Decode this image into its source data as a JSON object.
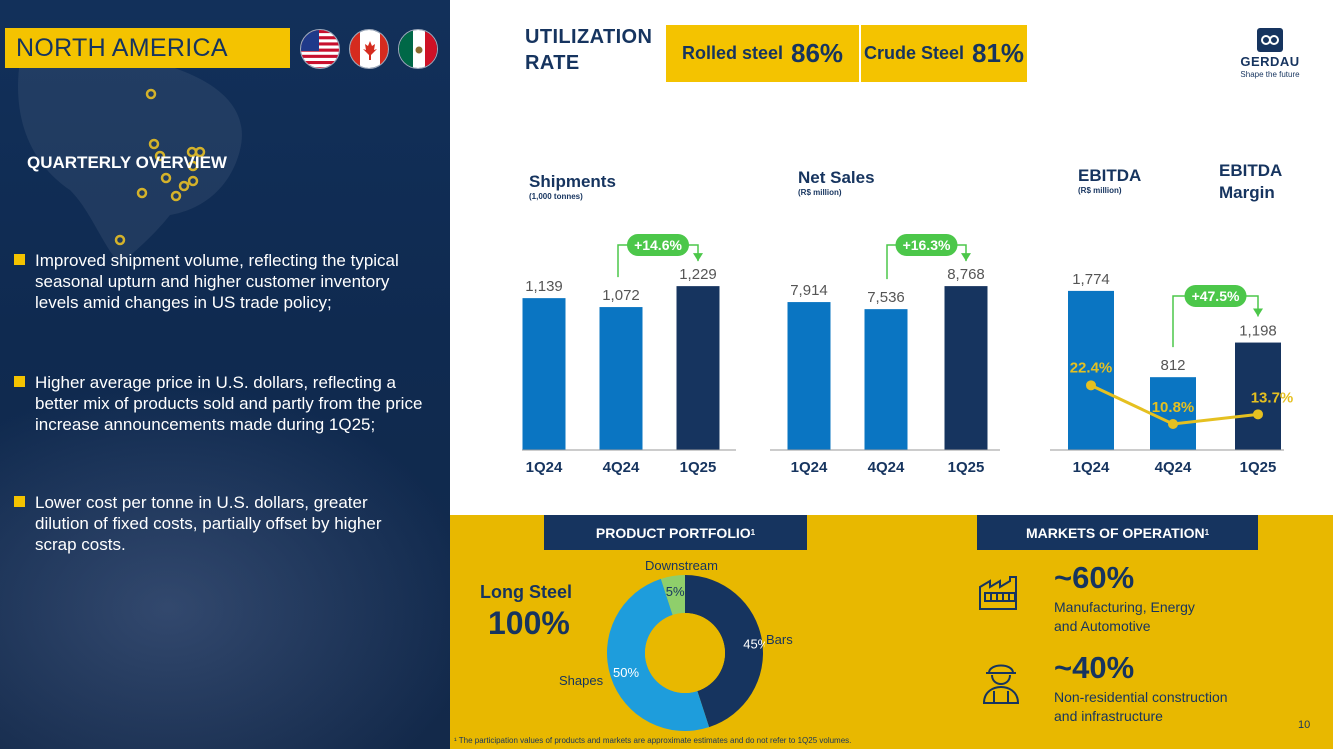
{
  "region": "NORTH AMERICA",
  "flags": [
    "us-flag-icon",
    "canada-flag-icon",
    "mexico-flag-icon"
  ],
  "overview_title": "QUARTERLY OVERVIEW",
  "bullets": [
    "Improved shipment volume, reflecting the typical seasonal upturn and higher customer inventory levels amid changes in US trade policy;",
    "Higher average price in U.S. dollars, reflecting a better mix of products sold and partly from the price increase announcements made during 1Q25;",
    "Lower cost per tonne in U.S. dollars, greater dilution of fixed costs, partially offset by higher scrap costs."
  ],
  "utilization": {
    "title_line1": "UTILIZATION",
    "title_line2": "RATE",
    "rolled_label": "Rolled steel",
    "rolled_value": "86%",
    "crude_label": "Crude Steel",
    "crude_value": "81%"
  },
  "logo": {
    "name": "GERDAU",
    "tagline": "Shape the future"
  },
  "colors": {
    "navy": "#16345f",
    "blue": "#0a75c2",
    "yellow": "#f4c300",
    "green": "#4cc74a",
    "light_blue": "#1e9ddc",
    "light_green": "#8fcf6b"
  },
  "chart_data": [
    {
      "type": "bar",
      "title": "Shipments",
      "subtitle": "(1,000 tonnes)",
      "categories": [
        "1Q24",
        "4Q24",
        "1Q25"
      ],
      "values": [
        1139,
        1072,
        1229
      ],
      "value_labels": [
        "1,139",
        "1,072",
        "1,229"
      ],
      "ylim": [
        0,
        1500
      ],
      "change": "+14.6%"
    },
    {
      "type": "bar",
      "title": "Net Sales",
      "subtitle": "(R$ million)",
      "categories": [
        "1Q24",
        "4Q24",
        "1Q25"
      ],
      "values": [
        7914,
        7536,
        8768
      ],
      "value_labels": [
        "7,914",
        "7,536",
        "8,768"
      ],
      "ylim": [
        0,
        10700
      ],
      "change": "+16.3%"
    },
    {
      "type": "bar",
      "title": "EBITDA",
      "subtitle": "(R$ million)",
      "title2_line1": "EBITDA",
      "title2_line2": "Margin",
      "categories": [
        "1Q24",
        "4Q24",
        "1Q25"
      ],
      "values": [
        1774,
        812,
        1198
      ],
      "value_labels": [
        "1,774",
        "812",
        "1,198"
      ],
      "ylim": [
        0,
        2230
      ],
      "change": "+47.5%",
      "margin_values": [
        22.4,
        10.8,
        13.7
      ],
      "margin_labels": [
        "22.4%",
        "10.8%",
        "13.7%"
      ]
    },
    {
      "type": "pie",
      "title": "PRODUCT PORTFOLIO¹",
      "slices": [
        {
          "name": "Bars",
          "value": 45,
          "label": "45%"
        },
        {
          "name": "Shapes",
          "value": 50,
          "label": "50%"
        },
        {
          "name": "Downstream",
          "value": 5,
          "label": "5%"
        }
      ]
    }
  ],
  "portfolio": {
    "title": "PRODUCT PORTFOLIO",
    "sup": "1",
    "long_label": "Long Steel",
    "long_value": "100%"
  },
  "markets": {
    "title": "MARKETS OF OPERATION",
    "sup": "1",
    "items": [
      {
        "icon": "factory-icon",
        "pct": "~60%",
        "line1": "Manufacturing, Energy",
        "line2": "and Automotive"
      },
      {
        "icon": "construction-worker-icon",
        "pct": "~40%",
        "line1": "Non-residential construction",
        "line2": "and infrastructure"
      }
    ]
  },
  "footnote": "¹ The participation values of products and markets are approximate estimates and do not refer to 1Q25 volumes.",
  "page_number": "10"
}
